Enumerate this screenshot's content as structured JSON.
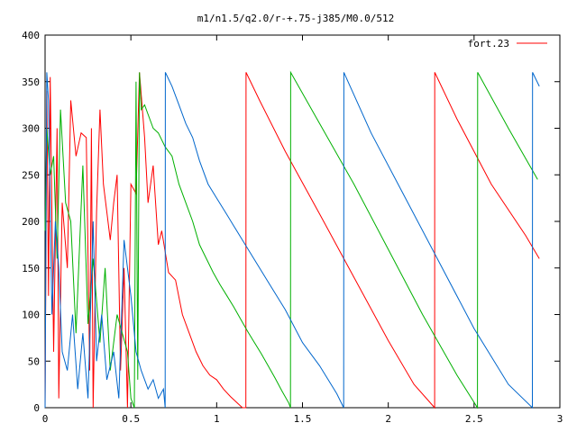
{
  "chart_data": {
    "type": "line",
    "title": "m1/n1.5/q2.0/r-+.75-j385/M0.0/512",
    "xlabel": "",
    "ylabel": "",
    "xlim": [
      0,
      3
    ],
    "ylim": [
      0,
      400
    ],
    "xticks": [
      {
        "value": 0,
        "label": "0"
      },
      {
        "value": 0.5,
        "label": "0.5"
      },
      {
        "value": 1,
        "label": "1"
      },
      {
        "value": 1.5,
        "label": "1.5"
      },
      {
        "value": 2,
        "label": "2"
      },
      {
        "value": 2.5,
        "label": "2.5"
      },
      {
        "value": 3,
        "label": "3"
      }
    ],
    "yticks": [
      {
        "value": 0,
        "label": "0"
      },
      {
        "value": 50,
        "label": "50"
      },
      {
        "value": 100,
        "label": "100"
      },
      {
        "value": 150,
        "label": "150"
      },
      {
        "value": 200,
        "label": "200"
      },
      {
        "value": 250,
        "label": "250"
      },
      {
        "value": 300,
        "label": "300"
      },
      {
        "value": 350,
        "label": "350"
      },
      {
        "value": 400,
        "label": "400"
      }
    ],
    "grid": false,
    "legend": {
      "position": "top-right",
      "entries": [
        {
          "label": "fort.23",
          "color": "#ff0000"
        }
      ]
    },
    "series": [
      {
        "name": "fort.23",
        "color": "#ff0000",
        "x": [
          0.0,
          0.01,
          0.02,
          0.03,
          0.05,
          0.07,
          0.08,
          0.1,
          0.13,
          0.15,
          0.18,
          0.21,
          0.24,
          0.26,
          0.27,
          0.28,
          0.3,
          0.32,
          0.34,
          0.36,
          0.38,
          0.4,
          0.42,
          0.44,
          0.46,
          0.48,
          0.5,
          0.53,
          0.55,
          0.58,
          0.6,
          0.63,
          0.66,
          0.68,
          0.72,
          0.76,
          0.8,
          0.84,
          0.88,
          0.92,
          0.96,
          1.0,
          1.04,
          1.08,
          1.12,
          1.15,
          1.17,
          1.171,
          1.25,
          1.4,
          1.6,
          1.8,
          2.0,
          2.15,
          2.27,
          2.271,
          2.4,
          2.6,
          2.8,
          2.88
        ],
        "y": [
          0,
          340,
          120,
          355,
          60,
          300,
          10,
          220,
          150,
          330,
          270,
          295,
          290,
          40,
          300,
          0,
          210,
          320,
          240,
          210,
          180,
          220,
          250,
          40,
          150,
          0,
          240,
          230,
          360,
          290,
          220,
          260,
          175,
          190,
          145,
          137,
          100,
          80,
          60,
          45,
          35,
          30,
          20,
          12,
          5,
          0,
          0,
          360,
          330,
          275,
          208,
          140,
          72,
          25,
          0,
          360,
          310,
          240,
          185,
          160
        ]
      },
      {
        "name": "",
        "color": "#00b000",
        "x": [
          0.0,
          0.01,
          0.03,
          0.05,
          0.07,
          0.09,
          0.12,
          0.15,
          0.18,
          0.22,
          0.25,
          0.28,
          0.32,
          0.35,
          0.38,
          0.42,
          0.45,
          0.48,
          0.5,
          0.52,
          0.53,
          0.54,
          0.55,
          0.56,
          0.58,
          0.6,
          0.63,
          0.66,
          0.7,
          0.74,
          0.78,
          0.82,
          0.86,
          0.9,
          0.94,
          0.98,
          1.02,
          1.06,
          1.1,
          1.14,
          1.18,
          1.22,
          1.26,
          1.3,
          1.34,
          1.38,
          1.42,
          1.43,
          1.431,
          1.6,
          1.8,
          2.0,
          2.2,
          2.4,
          2.52,
          2.521,
          2.7,
          2.87
        ],
        "y": [
          190,
          300,
          250,
          270,
          160,
          320,
          220,
          200,
          80,
          260,
          90,
          160,
          70,
          150,
          40,
          100,
          80,
          60,
          10,
          0,
          350,
          30,
          360,
          320,
          325,
          315,
          300,
          295,
          280,
          270,
          240,
          220,
          200,
          175,
          160,
          145,
          132,
          120,
          108,
          95,
          82,
          70,
          58,
          45,
          32,
          18,
          5,
          0,
          360,
          305,
          240,
          170,
          100,
          35,
          0,
          360,
          300,
          245
        ]
      },
      {
        "name": "",
        "color": "#0066cc",
        "x": [
          0.0,
          0.01,
          0.02,
          0.04,
          0.06,
          0.08,
          0.1,
          0.13,
          0.16,
          0.19,
          0.22,
          0.25,
          0.28,
          0.3,
          0.33,
          0.36,
          0.4,
          0.43,
          0.46,
          0.5,
          0.53,
          0.56,
          0.6,
          0.63,
          0.66,
          0.69,
          0.7,
          0.701,
          0.74,
          0.78,
          0.82,
          0.86,
          0.9,
          0.95,
          1.0,
          1.05,
          1.1,
          1.15,
          1.2,
          1.3,
          1.4,
          1.5,
          1.6,
          1.7,
          1.74,
          1.741,
          1.9,
          2.1,
          2.3,
          2.5,
          2.7,
          2.84,
          2.841,
          2.88
        ],
        "y": [
          0,
          360,
          330,
          100,
          200,
          150,
          60,
          40,
          100,
          20,
          80,
          10,
          200,
          50,
          100,
          30,
          60,
          10,
          180,
          120,
          60,
          40,
          20,
          30,
          10,
          20,
          0,
          360,
          345,
          325,
          305,
          290,
          265,
          240,
          225,
          210,
          195,
          180,
          165,
          135,
          105,
          70,
          45,
          15,
          0,
          360,
          295,
          225,
          155,
          85,
          25,
          0,
          360,
          345
        ]
      }
    ]
  }
}
